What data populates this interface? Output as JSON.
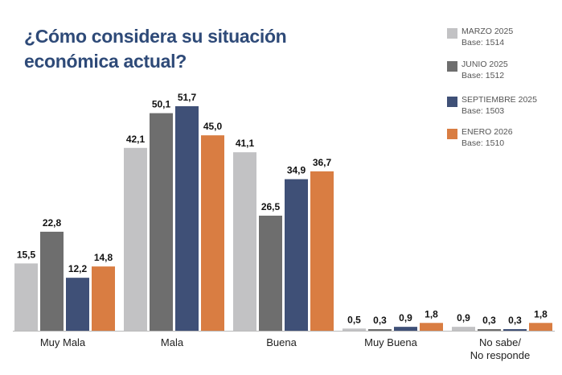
{
  "chart_data": {
    "type": "bar",
    "title": "¿Cómo considera su situación\neconómica actual?",
    "categories": [
      "Muy Mala",
      "Mala",
      "Buena",
      "Muy Buena",
      "No sabe/\nNo responde"
    ],
    "series": [
      {
        "name": "MARZO 2025",
        "base": "Base: 1514",
        "color": "#c2c2c4",
        "values": [
          15.5,
          42.1,
          41.1,
          0.5,
          0.9
        ],
        "value_labels": [
          "15,5",
          "42,1",
          "41,1",
          "0,5",
          "0,9"
        ]
      },
      {
        "name": "JUNIO 2025",
        "base": "Base: 1512",
        "color": "#6e6e6e",
        "values": [
          22.8,
          50.1,
          26.5,
          0.3,
          0.3
        ],
        "value_labels": [
          "22,8",
          "50,1",
          "26,5",
          "0,3",
          "0,3"
        ]
      },
      {
        "name": "SEPTIEMBRE 2025",
        "base": "Base: 1503",
        "color": "#3f5077",
        "values": [
          12.2,
          51.7,
          34.9,
          0.9,
          0.3
        ],
        "value_labels": [
          "12,2",
          "51,7",
          "34,9",
          "0,9",
          "0,3"
        ]
      },
      {
        "name": "ENERO 2026",
        "base": "Base: 1510",
        "color": "#d97d42",
        "values": [
          14.8,
          45.0,
          36.7,
          1.8,
          1.8
        ],
        "value_labels": [
          "14,8",
          "45,0",
          "36,7",
          "1,8",
          "1,8"
        ]
      }
    ],
    "legend": "top-right"
  }
}
